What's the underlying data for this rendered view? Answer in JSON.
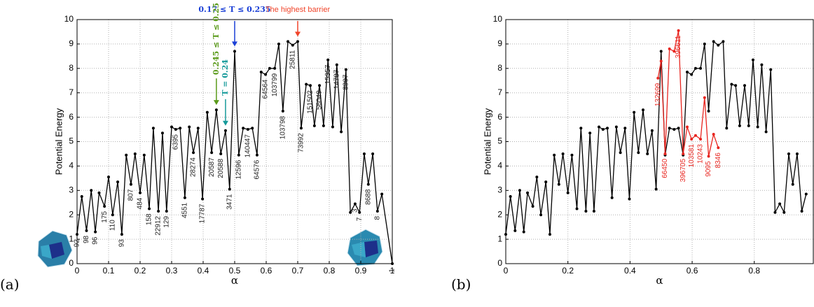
{
  "chart_data": [
    {
      "type": "line",
      "panel_label": "(a)",
      "xlabel": "α",
      "ylabel": "Potential Energy",
      "xlim": [
        0,
        1
      ],
      "xticks": [
        0,
        0.1,
        0.2,
        0.3,
        0.4,
        0.5,
        0.6,
        0.7,
        0.8,
        0.9,
        1
      ],
      "ylim": [
        0,
        10
      ],
      "yticks": [
        0,
        1,
        2,
        3,
        4,
        5,
        6,
        7,
        8,
        9,
        10
      ],
      "grid": true,
      "series": [
        {
          "color": "#000000",
          "x": [
            0,
            0.015,
            0.03,
            0.045,
            0.058,
            0.07,
            0.087,
            0.1,
            0.113,
            0.129,
            0.142,
            0.156,
            0.171,
            0.184,
            0.2,
            0.213,
            0.229,
            0.242,
            0.258,
            0.271,
            0.284,
            0.3,
            0.313,
            0.327,
            0.342,
            0.356,
            0.369,
            0.384,
            0.398,
            0.413,
            0.427,
            0.442,
            0.456,
            0.471,
            0.484,
            0.5,
            0.513,
            0.527,
            0.542,
            0.556,
            0.571,
            0.584,
            0.598,
            0.611,
            0.627,
            0.64,
            0.653,
            0.669,
            0.684,
            0.7,
            0.711,
            0.727,
            0.74,
            0.753,
            0.769,
            0.782,
            0.796,
            0.811,
            0.824,
            0.838,
            0.853,
            0.867,
            0.882,
            0.896,
            0.911,
            0.924,
            0.938,
            0.953,
            0.967,
            1.0
          ],
          "values": [
            1.2,
            2.75,
            1.35,
            3.0,
            1.3,
            2.9,
            2.35,
            3.55,
            2.0,
            3.35,
            1.2,
            4.45,
            3.25,
            4.5,
            2.9,
            4.45,
            2.25,
            5.55,
            2.15,
            5.35,
            2.15,
            5.6,
            5.5,
            5.55,
            2.7,
            5.6,
            4.55,
            5.55,
            2.65,
            6.2,
            4.55,
            6.3,
            4.5,
            5.45,
            3.05,
            8.7,
            4.45,
            5.55,
            5.5,
            5.55,
            4.45,
            7.85,
            7.75,
            8.0,
            8.0,
            9.0,
            6.25,
            9.1,
            8.95,
            9.1,
            5.55,
            7.35,
            7.3,
            5.65,
            7.3,
            5.65,
            8.35,
            5.6,
            8.15,
            5.4,
            7.95,
            2.1,
            2.45,
            2.1,
            4.5,
            3.25,
            4.5,
            2.15,
            2.85,
            0
          ],
          "point_labels": [
            "92",
            null,
            "98",
            null,
            "96",
            null,
            "175",
            null,
            "110",
            null,
            "93",
            null,
            "807",
            null,
            "484",
            null,
            "158",
            null,
            "22912",
            null,
            "129",
            null,
            "6395",
            null,
            "4551",
            null,
            "28274",
            null,
            "17787",
            null,
            "20587",
            null,
            "20588",
            null,
            "3471",
            null,
            "12596",
            null,
            "140447",
            null,
            "64576",
            null,
            "64564",
            null,
            "103799",
            null,
            "103798",
            null,
            "25811",
            null,
            "73992",
            null,
            "151502",
            null,
            "56049",
            null,
            "15357",
            null,
            "14787",
            null,
            "8807",
            null,
            "3",
            "7",
            null,
            "8688",
            null,
            "8",
            null,
            "1"
          ]
        }
      ],
      "annotations": [
        {
          "text": "0.17 ≤ T ≤ 0.235",
          "color": "#1a3fd6",
          "x": 0.5,
          "y": 8.7,
          "vertical": false
        },
        {
          "text": "The highest barrier",
          "color": "#f0442a",
          "x": 0.7,
          "y": 9.1,
          "vertical": false
        },
        {
          "text": "0.245 ≤ T ≤ 0.25",
          "color": "#5a9a1a",
          "x": 0.442,
          "y": 6.3,
          "vertical": true
        },
        {
          "text": "T = 0.24",
          "color": "#169a9a",
          "x": 0.471,
          "y": 5.45,
          "vertical": true
        }
      ]
    },
    {
      "type": "line",
      "panel_label": "(b)",
      "xlabel": "α",
      "ylabel": "Potential Energy",
      "xlim": [
        0,
        0.99
      ],
      "xticks": [
        0,
        0.2,
        0.4,
        0.6,
        0.8
      ],
      "ylim": [
        0,
        10
      ],
      "yticks": [
        0,
        1,
        2,
        3,
        4,
        5,
        6,
        7,
        8,
        9,
        10
      ],
      "grid": true,
      "series": [
        {
          "color": "#000000",
          "x": [
            0,
            0.015,
            0.03,
            0.045,
            0.058,
            0.07,
            0.087,
            0.1,
            0.113,
            0.129,
            0.142,
            0.156,
            0.171,
            0.184,
            0.2,
            0.213,
            0.229,
            0.242,
            0.258,
            0.271,
            0.284,
            0.3,
            0.313,
            0.327,
            0.342,
            0.356,
            0.369,
            0.384,
            0.398,
            0.413,
            0.427,
            0.442,
            0.456,
            0.471,
            0.484,
            0.5,
            0.513,
            0.527,
            0.542,
            0.556,
            0.571,
            0.584,
            0.598,
            0.611,
            0.627,
            0.64,
            0.653,
            0.669,
            0.684,
            0.7,
            0.711,
            0.727,
            0.74,
            0.753,
            0.769,
            0.782,
            0.796,
            0.811,
            0.824,
            0.838,
            0.853,
            0.867,
            0.882,
            0.896,
            0.911,
            0.924,
            0.938,
            0.953,
            0.967
          ],
          "values": [
            1.2,
            2.75,
            1.35,
            3.0,
            1.3,
            2.9,
            2.35,
            3.55,
            2.0,
            3.35,
            1.2,
            4.45,
            3.25,
            4.5,
            2.9,
            4.45,
            2.25,
            5.55,
            2.15,
            5.35,
            2.15,
            5.6,
            5.5,
            5.55,
            2.7,
            5.6,
            4.55,
            5.55,
            2.65,
            6.2,
            4.55,
            6.3,
            4.5,
            5.45,
            3.05,
            8.7,
            4.45,
            5.55,
            5.5,
            5.55,
            4.45,
            7.85,
            7.75,
            8.0,
            8.0,
            9.0,
            6.25,
            9.1,
            8.95,
            9.1,
            5.55,
            7.35,
            7.3,
            5.65,
            7.3,
            5.65,
            8.35,
            5.6,
            8.15,
            5.4,
            7.95,
            2.1,
            2.45,
            2.1,
            4.5,
            3.25,
            4.5,
            2.15,
            2.85
          ]
        },
        {
          "color": "#e8251f",
          "x": [
            0.49,
            0.5,
            0.513,
            0.527,
            0.542,
            0.556,
            0.571,
            0.584,
            0.598,
            0.611,
            0.627,
            0.64,
            0.653,
            0.669,
            0.684
          ],
          "values": [
            7.6,
            8.3,
            4.5,
            8.8,
            8.7,
            9.55,
            4.5,
            5.6,
            5.1,
            5.25,
            5.1,
            6.8,
            4.4,
            5.3,
            4.75
          ],
          "point_labels": [
            "132699",
            null,
            "66450",
            null,
            null,
            "396611",
            "396705",
            null,
            "103581",
            null,
            "10243",
            null,
            "9095",
            null,
            "8346"
          ]
        }
      ]
    }
  ]
}
